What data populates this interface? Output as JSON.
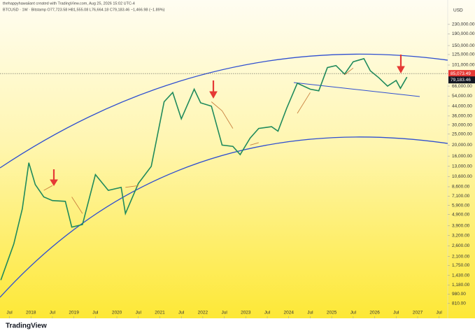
{
  "chart_data": {
    "type": "line",
    "header": [
      "thehappyhawaiiant created with TradingView.com, Aug 25, 2026 15:02 UTC-4",
      "BTCUSD · 1W · Bitstamp   O77,723.58  H81,555.08  L76,664.18  C79,183.46  −1,466.98 (−1.89%)"
    ],
    "currency": "USD",
    "brand": "TradingView",
    "log_scale": true,
    "x": [
      2017.3,
      2017.6,
      2017.8,
      2017.95,
      2018.1,
      2018.3,
      2018.5,
      2018.8,
      2018.95,
      2019.2,
      2019.5,
      2019.8,
      2020.1,
      2020.2,
      2020.5,
      2020.8,
      2020.95,
      2021.1,
      2021.3,
      2021.5,
      2021.8,
      2021.95,
      2022.2,
      2022.45,
      2022.7,
      2022.87,
      2023.1,
      2023.3,
      2023.6,
      2023.75,
      2023.95,
      2024.2,
      2024.5,
      2024.7,
      2024.9,
      2025.1,
      2025.3,
      2025.5,
      2025.75,
      2025.9,
      2026.1,
      2026.3,
      2026.5,
      2026.6,
      2026.75
    ],
    "series": [
      {
        "name": "BTCUSD",
        "color": "#1f8a5c",
        "values": [
          1300,
          2700,
          5500,
          14000,
          9000,
          7000,
          6500,
          6400,
          3800,
          4000,
          11000,
          8000,
          8500,
          5000,
          9200,
          13000,
          25000,
          48000,
          58000,
          34000,
          62000,
          47000,
          44000,
          20000,
          19500,
          16500,
          23000,
          28000,
          29000,
          26500,
          42000,
          70000,
          62000,
          60000,
          96000,
          100000,
          84000,
          108000,
          115000,
          90000,
          78000,
          66000,
          74000,
          63000,
          79183.46
        ]
      },
      {
        "name": "MA",
        "color": "#c9803f",
        "values": [
          null,
          null,
          null,
          5000,
          null,
          8000,
          8800,
          null,
          7000,
          5000,
          null,
          7500,
          null,
          8500,
          8800,
          null,
          13000,
          null,
          30000,
          null,
          42000,
          null,
          48000,
          40000,
          28000,
          null,
          20000,
          21000,
          null,
          27000,
          null,
          38000,
          58000,
          null,
          65000,
          null,
          83000,
          95000,
          null,
          102000,
          null,
          95000,
          null,
          null,
          82000
        ]
      }
    ],
    "price_line": {
      "value": 85073.49,
      "label": "85,073.49"
    },
    "last_price": {
      "value": 79183.46,
      "label": "79,183.46"
    },
    "xlim": [
      2017.28,
      2027.7
    ],
    "xticks": [
      {
        "value": 2017.5,
        "label": "Jul"
      },
      {
        "value": 2018,
        "label": "2018"
      },
      {
        "value": 2018.5,
        "label": "Jul"
      },
      {
        "value": 2019,
        "label": "2019"
      },
      {
        "value": 2019.5,
        "label": "Jul"
      },
      {
        "value": 2020,
        "label": "2020"
      },
      {
        "value": 2020.5,
        "label": "Jul"
      },
      {
        "value": 2021,
        "label": "2021"
      },
      {
        "value": 2021.5,
        "label": "Jul"
      },
      {
        "value": 2022,
        "label": "2022"
      },
      {
        "value": 2022.5,
        "label": "Jul"
      },
      {
        "value": 2023,
        "label": "2023"
      },
      {
        "value": 2023.5,
        "label": "Jul"
      },
      {
        "value": 2024,
        "label": "2024"
      },
      {
        "value": 2024.5,
        "label": "Jul"
      },
      {
        "value": 2025,
        "label": "2025"
      },
      {
        "value": 2025.5,
        "label": "Jul"
      },
      {
        "value": 2026,
        "label": "2026"
      },
      {
        "value": 2026.5,
        "label": "Jul"
      },
      {
        "value": 2027,
        "label": "2027"
      },
      {
        "value": 2027.5,
        "label": "Jul"
      }
    ],
    "ylim": [
      600,
      377000
    ],
    "yticks": [
      {
        "value": 230000,
        "label": "230,000.00"
      },
      {
        "value": 190000,
        "label": "190,000.00"
      },
      {
        "value": 150000,
        "label": "150,000.00"
      },
      {
        "value": 125000,
        "label": "125,000.00"
      },
      {
        "value": 101000,
        "label": "101,000.00"
      },
      {
        "value": 66000,
        "label": "66,000.00"
      },
      {
        "value": 54000,
        "label": "54,000.00"
      },
      {
        "value": 44000,
        "label": "44,000.00"
      },
      {
        "value": 36000,
        "label": "36,000.00"
      },
      {
        "value": 30000,
        "label": "30,000.00"
      },
      {
        "value": 25000,
        "label": "25,000.00"
      },
      {
        "value": 20000,
        "label": "20,000.00"
      },
      {
        "value": 16000,
        "label": "16,000.00"
      },
      {
        "value": 13000,
        "label": "13,000.00"
      },
      {
        "value": 10600,
        "label": "10,600.00"
      },
      {
        "value": 8600,
        "label": "8,600.00"
      },
      {
        "value": 7100,
        "label": "7,100.00"
      },
      {
        "value": 5900,
        "label": "5,900.00"
      },
      {
        "value": 4900,
        "label": "4,900.00"
      },
      {
        "value": 3900,
        "label": "3,900.00"
      },
      {
        "value": 3200,
        "label": "3,200.00"
      },
      {
        "value": 2600,
        "label": "2,600.00"
      },
      {
        "value": 2100,
        "label": "2,100.00"
      },
      {
        "value": 1750,
        "label": "1,750.00"
      },
      {
        "value": 1430,
        "label": "1,430.00"
      },
      {
        "value": 1180,
        "label": "1,180.00"
      },
      {
        "value": 980,
        "label": "980.00"
      },
      {
        "value": 810,
        "label": "810.00"
      }
    ]
  }
}
